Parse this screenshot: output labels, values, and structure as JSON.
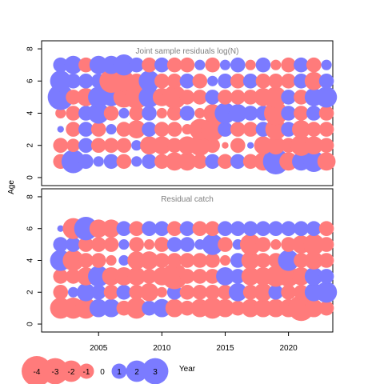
{
  "chart_data": {
    "type": "scatter",
    "subtype": "bubble residual plot",
    "x_label": "Year",
    "y_label": "Age",
    "xlim": [
      2000.5,
      2023.5
    ],
    "ylim": [
      -0.5,
      8.5
    ],
    "x_ticks": [
      2005,
      2010,
      2015,
      2020
    ],
    "y_ticks": [
      0,
      2,
      4,
      6,
      8
    ],
    "colors": {
      "positive": "#0000FF",
      "negative": "#FF0000",
      "positive_fill": "#7B7BFF",
      "negative_fill": "#FF7B7B",
      "title_gray": "#7F7F7F"
    },
    "years": [
      2002,
      2003,
      2004,
      2005,
      2006,
      2007,
      2008,
      2009,
      2010,
      2011,
      2012,
      2013,
      2014,
      2015,
      2016,
      2017,
      2018,
      2019,
      2020,
      2021,
      2022,
      2023
    ],
    "ages": [
      1,
      2,
      3,
      4,
      5,
      6,
      7
    ],
    "panels": [
      {
        "title": "Joint sample residuals log(N)",
        "residuals": [
          [
            -1.0,
            2.5,
            1.0,
            0.5,
            1.0,
            -1.0,
            0.5,
            1.0,
            -1.0,
            -1.5,
            -1.5,
            -1.0,
            1.0,
            -1.0,
            1.0,
            -1.0,
            -1.5,
            3.0,
            -1.5,
            1.5,
            2.0,
            -1.5
          ],
          [
            -1.0,
            -0.8,
            1.0,
            -1.0,
            -1.0,
            -1.0,
            0.5,
            -1.5,
            -1.5,
            -1.0,
            -1.5,
            -2.0,
            -1.0,
            -0.2,
            -1.0,
            0.2,
            -1.5,
            -1.5,
            -1.0,
            -2.0,
            -1.5,
            -1.0
          ],
          [
            0.2,
            -1.0,
            1.0,
            -1.0,
            0.5,
            -1.0,
            -1.5,
            1.0,
            -1.0,
            -1.0,
            -0.5,
            -2.0,
            -2.5,
            1.0,
            -1.0,
            -1.0,
            1.0,
            -2.0,
            1.0,
            -1.5,
            -1.0,
            -1.0
          ],
          [
            -0.5,
            -1.0,
            1.0,
            2.0,
            -1.0,
            0.5,
            -1.0,
            1.0,
            -0.5,
            -1.0,
            1.0,
            -0.5,
            -1.5,
            2.0,
            1.5,
            1.0,
            1.0,
            -2.5,
            1.0,
            -1.0,
            1.0,
            -1.0
          ],
          [
            3.0,
            -1.0,
            -1.5,
            2.0,
            1.5,
            -2.0,
            -2.5,
            2.0,
            -1.5,
            -2.5,
            -1.0,
            -1.0,
            1.0,
            -1.0,
            -1.0,
            -1.0,
            -1.5,
            -2.0,
            1.0,
            -1.0,
            1.5,
            2.0
          ],
          [
            2.0,
            1.0,
            1.0,
            1.0,
            -2.5,
            -2.0,
            -1.0,
            2.0,
            -1.0,
            -1.0,
            1.0,
            -1.0,
            0.5,
            1.0,
            -1.0,
            1.0,
            -1.0,
            -1.0,
            -1.0,
            1.0,
            -1.5,
            1.0
          ],
          [
            1.0,
            1.5,
            -1.0,
            1.5,
            1.5,
            2.0,
            1.0,
            -1.0,
            1.0,
            -1.0,
            -1.0,
            0.5,
            -1.0,
            0.5,
            1.0,
            -0.5,
            1.0,
            -0.5,
            -1.0,
            1.0,
            -1.0,
            0.5
          ]
        ]
      },
      {
        "title": "Residual catch",
        "residuals": [
          [
            -2.0,
            -2.0,
            -2.0,
            1.5,
            1.5,
            -1.0,
            -2.0,
            1.0,
            1.5,
            -1.5,
            -1.0,
            -1.5,
            -2.0,
            -1.5,
            -1.0,
            -1.5,
            -1.5,
            -1.5,
            -1.5,
            -3.0,
            -1.5,
            -1.0
          ],
          [
            -1.0,
            0.5,
            1.5,
            1.0,
            -1.0,
            1.0,
            -1.0,
            -1.5,
            -0.5,
            1.0,
            -1.0,
            -1.0,
            -1.0,
            -1.0,
            1.5,
            -1.0,
            -1.5,
            1.0,
            -1.0,
            -1.0,
            1.5,
            2.0
          ],
          [
            -1.0,
            -1.0,
            -1.5,
            2.0,
            -1.5,
            -1.5,
            -1.5,
            -1.0,
            -1.5,
            -3.0,
            -1.0,
            -1.0,
            -1.0,
            1.5,
            1.0,
            -1.5,
            -1.5,
            -2.0,
            -2.0,
            -1.5,
            1.5,
            1.0
          ],
          [
            2.0,
            -2.0,
            -1.0,
            -1.0,
            -0.5,
            0.5,
            -1.5,
            -1.5,
            -1.0,
            -1.0,
            -1.0,
            -1.0,
            -1.0,
            -0.5,
            1.0,
            -1.5,
            -1.0,
            -1.0,
            2.0,
            -1.0,
            -1.5,
            -1.0
          ],
          [
            1.0,
            1.0,
            -1.0,
            -1.0,
            -1.0,
            0.5,
            -1.0,
            -0.5,
            -1.0,
            1.0,
            1.0,
            0.5,
            2.0,
            -1.0,
            0.5,
            -2.0,
            -1.0,
            -0.5,
            -1.0,
            -1.5,
            -2.0,
            -1.0
          ],
          [
            0.2,
            -2.0,
            2.5,
            -1.5,
            -1.5,
            1.0,
            -1.0,
            1.0,
            1.0,
            -1.0,
            1.0,
            -1.0,
            -1.0,
            1.0,
            1.0,
            1.0,
            1.0,
            1.0,
            1.0,
            1.0,
            1.0,
            -1.0
          ]
        ]
      }
    ],
    "legend": {
      "position": "bottom-left",
      "labels": [
        "-4",
        "-3",
        "-2",
        "-1",
        "0",
        "1",
        "2",
        "3"
      ],
      "values": [
        -4,
        -3,
        -2,
        -1,
        0,
        1,
        2,
        3
      ]
    },
    "grid": false
  }
}
